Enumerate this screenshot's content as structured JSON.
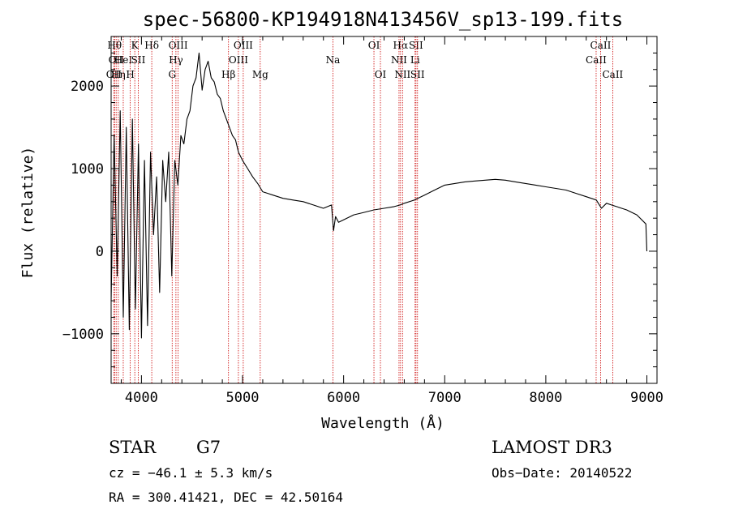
{
  "chart_data": {
    "type": "line",
    "title": "spec-56800-KP194918N413456V_sp13-199.fits",
    "xlabel": "Wavelength (Å)",
    "ylabel": "Flux (relative)",
    "xlim": [
      3700,
      9100
    ],
    "ylim": [
      -1600,
      2600
    ],
    "xticks": [
      4000,
      5000,
      6000,
      7000,
      8000,
      9000
    ],
    "yticks": [
      -1000,
      0,
      1000,
      2000
    ],
    "xtick_labels": [
      "4000",
      "5000",
      "6000",
      "7000",
      "8000",
      "9000"
    ],
    "ytick_labels": [
      "−1000",
      "0",
      "1000",
      "2000"
    ],
    "series": [
      {
        "name": "spectrum",
        "x": [
          3700,
          3730,
          3760,
          3790,
          3820,
          3850,
          3880,
          3910,
          3940,
          3970,
          4000,
          4030,
          4060,
          4090,
          4120,
          4150,
          4180,
          4210,
          4240,
          4270,
          4300,
          4330,
          4360,
          4390,
          4420,
          4450,
          4480,
          4510,
          4540,
          4570,
          4600,
          4630,
          4660,
          4690,
          4720,
          4750,
          4780,
          4810,
          4840,
          4870,
          4900,
          4930,
          4960,
          5000,
          5050,
          5100,
          5150,
          5200,
          5250,
          5300,
          5400,
          5500,
          5600,
          5700,
          5800,
          5880,
          5900,
          5920,
          5950,
          6000,
          6100,
          6200,
          6300,
          6400,
          6500,
          6560,
          6600,
          6700,
          6800,
          6900,
          7000,
          7100,
          7200,
          7300,
          7400,
          7500,
          7600,
          7700,
          7800,
          7900,
          8000,
          8100,
          8200,
          8300,
          8400,
          8500,
          8550,
          8600,
          8650,
          8700,
          8800,
          8900,
          8990,
          9000
        ],
        "y": [
          -600,
          1400,
          -300,
          1700,
          -800,
          1500,
          -950,
          1600,
          -700,
          1300,
          -1050,
          1100,
          -900,
          1200,
          200,
          900,
          -500,
          1100,
          600,
          1200,
          -300,
          1100,
          800,
          1400,
          1300,
          1600,
          1700,
          2000,
          2100,
          2400,
          1950,
          2200,
          2300,
          2100,
          2050,
          1900,
          1850,
          1700,
          1600,
          1500,
          1400,
          1350,
          1200,
          1100,
          1000,
          900,
          820,
          720,
          700,
          680,
          640,
          620,
          600,
          560,
          520,
          560,
          250,
          420,
          350,
          380,
          440,
          470,
          500,
          520,
          540,
          560,
          580,
          620,
          680,
          740,
          800,
          820,
          840,
          850,
          860,
          870,
          860,
          840,
          820,
          800,
          780,
          760,
          740,
          700,
          660,
          620,
          520,
          580,
          560,
          540,
          500,
          440,
          330,
          0
        ]
      }
    ],
    "line_markers": [
      {
        "x": 3727,
        "label": "OII",
        "row": 3
      },
      {
        "x": 3734,
        "label": "Hθ",
        "row": 1
      },
      {
        "x": 3750,
        "label": "OII",
        "row": 2
      },
      {
        "x": 3771,
        "label": "Hη",
        "row": 3
      },
      {
        "x": 3820,
        "label": "HeI",
        "row": 2
      },
      {
        "x": 3889,
        "label": "H",
        "row": 3
      },
      {
        "x": 3934,
        "label": "K",
        "row": 1
      },
      {
        "x": 3969,
        "label": "SII",
        "row": 2
      },
      {
        "x": 4102,
        "label": "Hδ",
        "row": 1
      },
      {
        "x": 4304,
        "label": "G",
        "row": 3
      },
      {
        "x": 4341,
        "label": "Hγ",
        "row": 2
      },
      {
        "x": 4363,
        "label": "OIII",
        "row": 1
      },
      {
        "x": 4861,
        "label": "Hβ",
        "row": 3
      },
      {
        "x": 4959,
        "label": "OIII",
        "row": 2
      },
      {
        "x": 5007,
        "label": "OIII",
        "row": 1
      },
      {
        "x": 5175,
        "label": "Mg",
        "row": 3
      },
      {
        "x": 5894,
        "label": "Na",
        "row": 2
      },
      {
        "x": 6300,
        "label": "OI",
        "row": 1
      },
      {
        "x": 6364,
        "label": "OI",
        "row": 3
      },
      {
        "x": 6548,
        "label": "NII",
        "row": 2
      },
      {
        "x": 6563,
        "label": "Hα",
        "row": 1
      },
      {
        "x": 6583,
        "label": "NII",
        "row": 3
      },
      {
        "x": 6707,
        "label": "Li",
        "row": 2
      },
      {
        "x": 6716,
        "label": "SII",
        "row": 1
      },
      {
        "x": 6731,
        "label": "SII",
        "row": 3
      },
      {
        "x": 8498,
        "label": "CaII",
        "row": 2
      },
      {
        "x": 8542,
        "label": "CaII",
        "row": 1
      },
      {
        "x": 8662,
        "label": "CaII",
        "row": 3
      }
    ]
  },
  "info": {
    "class": "STAR",
    "subclass": "G7",
    "survey": "LAMOST DR3",
    "cz": "cz = −46.1 ± 5.3 km/s",
    "obs_date": "Obs−Date: 20140522",
    "coords": "RA = 300.41421, DEC =  42.50164"
  }
}
